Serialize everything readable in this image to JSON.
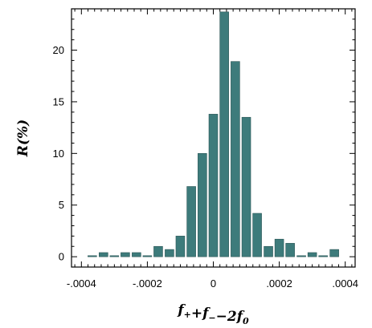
{
  "chart_data": {
    "type": "bar",
    "xlabel": {
      "parts": [
        {
          "text": "f",
          "sub": "+"
        },
        {
          "text": "+f",
          "sub": "−"
        },
        {
          "text": "−2f",
          "sub": "0"
        }
      ]
    },
    "ylabel": "R(%)",
    "xlim": [
      -0.00043,
      0.00043
    ],
    "ylim": [
      -1.0,
      24.0
    ],
    "x_ticks": [
      {
        "value": -0.0004,
        "label": "-.0004"
      },
      {
        "value": -0.0002,
        "label": "-.0002"
      },
      {
        "value": 0,
        "label": "0"
      },
      {
        "value": 0.0002,
        "label": ".0002"
      },
      {
        "value": 0.0004,
        "label": ".0004"
      }
    ],
    "y_ticks": [
      {
        "value": 0,
        "label": "0"
      },
      {
        "value": 5,
        "label": "5"
      },
      {
        "value": 10,
        "label": "10"
      },
      {
        "value": 15,
        "label": "15"
      },
      {
        "value": 20,
        "label": "20"
      }
    ],
    "bin_width": 3.333e-05,
    "x": [
      -0.000367,
      -0.000333,
      -0.0003,
      -0.000267,
      -0.000233,
      -0.0002,
      -0.000167,
      -0.000133,
      -0.0001,
      -6.67e-05,
      -3.33e-05,
      0,
      3.33e-05,
      6.67e-05,
      0.0001,
      0.000133,
      0.000167,
      0.0002,
      0.000233,
      0.000267,
      0.0003,
      0.000333,
      0.000367
    ],
    "values": [
      0.1,
      0.4,
      0.1,
      0.4,
      0.4,
      0.1,
      1.0,
      0.7,
      2.0,
      6.8,
      10.0,
      13.8,
      23.7,
      18.9,
      13.5,
      4.2,
      1.0,
      1.7,
      1.3,
      0.1,
      0.4,
      0.1,
      0.7
    ],
    "bar_color": "#3d7b7b",
    "bar_edge_color": "#2a5555",
    "grid": false
  }
}
